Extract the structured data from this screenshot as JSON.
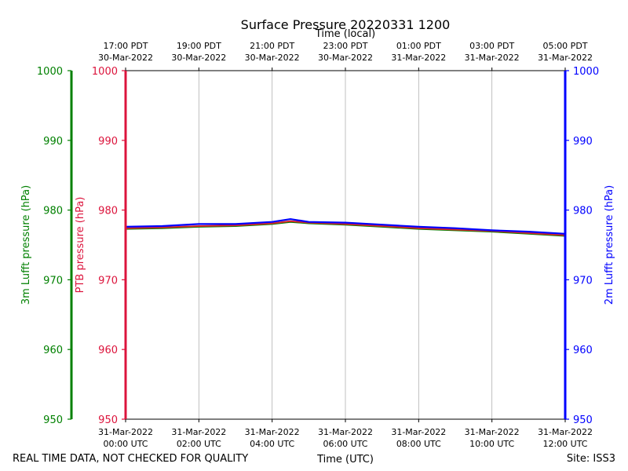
{
  "chart_data": {
    "type": "line",
    "title": "Surface Pressure 20220331 1200",
    "top_axis_label": "Time (local)",
    "xlabel": "Time (UTC)",
    "ylabel_outer_left": "3m Lufft pressure (hPa)",
    "ylabel_inner_left": "PTB pressure (hPa)",
    "ylabel_right": "2m Lufft pressure (hPa)",
    "ylim": [
      950,
      1000
    ],
    "xlim_hours_utc": [
      0,
      12
    ],
    "y_ticks": [
      "950",
      "960",
      "970",
      "980",
      "990",
      "1000"
    ],
    "x_ticks_bottom": [
      {
        "line1": "31-Mar-2022",
        "line2": "00:00 UTC"
      },
      {
        "line1": "31-Mar-2022",
        "line2": "02:00 UTC"
      },
      {
        "line1": "31-Mar-2022",
        "line2": "04:00 UTC"
      },
      {
        "line1": "31-Mar-2022",
        "line2": "06:00 UTC"
      },
      {
        "line1": "31-Mar-2022",
        "line2": "08:00 UTC"
      },
      {
        "line1": "31-Mar-2022",
        "line2": "10:00 UTC"
      },
      {
        "line1": "31-Mar-2022",
        "line2": "12:00 UTC"
      }
    ],
    "x_ticks_top": [
      {
        "line1": "17:00 PDT",
        "line2": "30-Mar-2022"
      },
      {
        "line1": "19:00 PDT",
        "line2": "30-Mar-2022"
      },
      {
        "line1": "21:00 PDT",
        "line2": "30-Mar-2022"
      },
      {
        "line1": "23:00 PDT",
        "line2": "30-Mar-2022"
      },
      {
        "line1": "01:00 PDT",
        "line2": "31-Mar-2022"
      },
      {
        "line1": "03:00 PDT",
        "line2": "31-Mar-2022"
      },
      {
        "line1": "05:00 PDT",
        "line2": "31-Mar-2022"
      }
    ],
    "grid": "vertical",
    "x_hours": [
      0,
      1,
      2,
      3,
      4,
      4.5,
      5,
      6,
      7,
      8,
      9,
      10,
      11,
      12
    ],
    "series": [
      {
        "color": "#008000",
        "values": [
          977.3,
          977.4,
          977.6,
          977.7,
          978.0,
          978.3,
          978.1,
          977.9,
          977.6,
          977.3,
          977.1,
          976.9,
          976.6,
          976.3
        ]
      },
      {
        "color": "#d62728",
        "values": [
          977.4,
          977.5,
          977.7,
          977.8,
          978.1,
          978.4,
          978.2,
          978.0,
          977.7,
          977.4,
          977.2,
          977.0,
          976.7,
          976.4
        ]
      },
      {
        "color": "#0000ff",
        "values": [
          977.6,
          977.7,
          978.0,
          978.0,
          978.3,
          978.7,
          978.3,
          978.2,
          977.9,
          977.6,
          977.4,
          977.1,
          976.9,
          976.6
        ]
      }
    ],
    "colors": {
      "outer_left": "#008000",
      "inner_left": "#dc143c",
      "right": "#0000ff"
    }
  },
  "footer": {
    "left_note": "REAL TIME DATA, NOT CHECKED FOR QUALITY",
    "site": "Site: ISS3"
  }
}
